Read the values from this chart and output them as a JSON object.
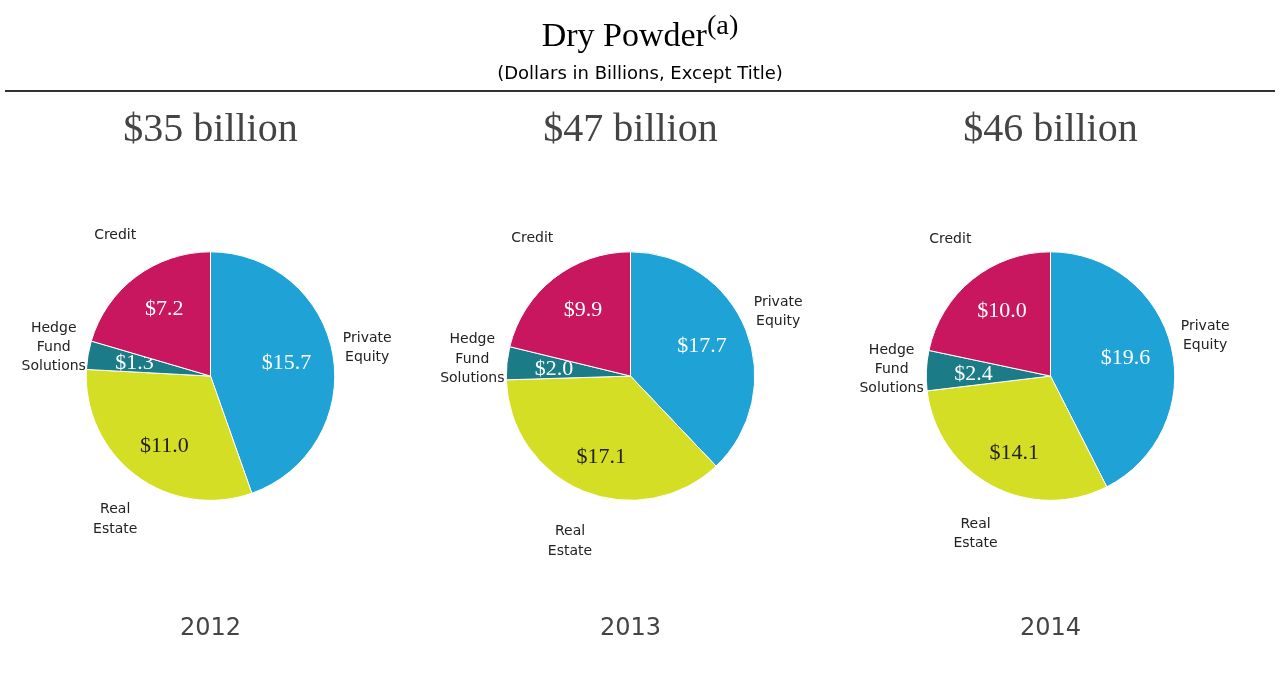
{
  "chart_data": [
    {
      "type": "pie",
      "title": "$35 billion",
      "xlabel": "2012",
      "annotations": [
        "Dry Powder$^{(a)}$",
        "(Dollars in Billions, Except Title)"
      ],
      "categories": [
        "Private Equity",
        "Real Estate",
        "Hedge Fund Solutions",
        "Credit"
      ],
      "values": [
        15.7,
        11.0,
        1.3,
        7.2
      ],
      "value_labels": [
        "$15.7",
        "$11.0",
        "$1.3",
        "$7.2"
      ],
      "colors": [
        "#1fa2d6",
        "#d3de24",
        "#1b7b86",
        "#c8175e"
      ]
    },
    {
      "type": "pie",
      "title": "$47 billion",
      "xlabel": "2013",
      "categories": [
        "Private Equity",
        "Real Estate",
        "Hedge Fund Solutions",
        "Credit"
      ],
      "values": [
        17.7,
        17.1,
        2.0,
        9.9
      ],
      "value_labels": [
        "$17.7",
        "$17.1",
        "$2.0",
        "$9.9"
      ],
      "colors": [
        "#1fa2d6",
        "#d3de24",
        "#1b7b86",
        "#c8175e"
      ]
    },
    {
      "type": "pie",
      "title": "$46 billion",
      "xlabel": "2014",
      "categories": [
        "Private Equity",
        "Real Estate",
        "Hedge Fund Solutions",
        "Credit"
      ],
      "values": [
        19.6,
        14.1,
        2.4,
        10.0
      ],
      "value_labels": [
        "$19.6",
        "$14.1",
        "$2.4",
        "$10.0"
      ],
      "colors": [
        "#1fa2d6",
        "#d3de24",
        "#1b7b86",
        "#c8175e"
      ]
    }
  ]
}
